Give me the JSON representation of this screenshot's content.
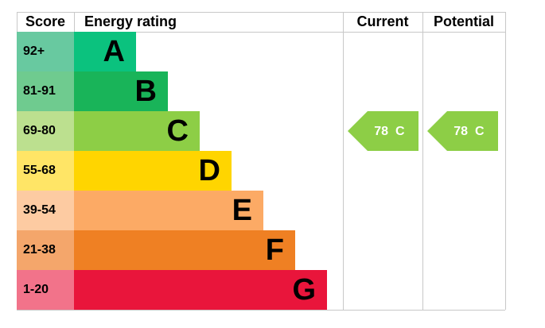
{
  "header": {
    "score": "Score",
    "rating": "Energy rating",
    "current": "Current",
    "potential": "Potential"
  },
  "bands": [
    {
      "range": "92+",
      "letter": "A",
      "color": "#0bc27e",
      "light": "#68c9a0"
    },
    {
      "range": "81-91",
      "letter": "B",
      "color": "#19b459",
      "light": "#6fcb8f"
    },
    {
      "range": "69-80",
      "letter": "C",
      "color": "#8dce46",
      "light": "#bce08f"
    },
    {
      "range": "55-68",
      "letter": "D",
      "color": "#ffd500",
      "light": "#ffe566"
    },
    {
      "range": "39-54",
      "letter": "E",
      "color": "#fcaa65",
      "light": "#fdcba2"
    },
    {
      "range": "21-38",
      "letter": "F",
      "color": "#ef8023",
      "light": "#f4a66b"
    },
    {
      "range": "1-20",
      "letter": "G",
      "color": "#e9153b",
      "light": "#f2738a"
    }
  ],
  "current": {
    "score": 78,
    "rating": "C"
  },
  "potential": {
    "score": 78,
    "rating": "C"
  }
}
